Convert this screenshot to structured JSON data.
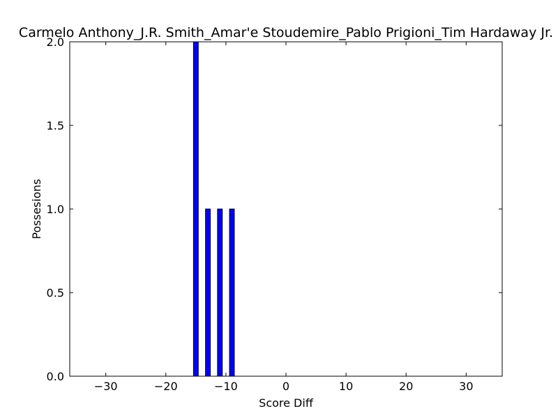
{
  "chart_data": {
    "type": "bar",
    "title": "Carmelo Anthony_J.R. Smith_Amar'e Stoudemire_Pablo Prigioni_Tim Hardaway Jr.",
    "xlabel": "Score Diff",
    "ylabel": "Possesions",
    "xlim": [
      -36,
      36
    ],
    "ylim": [
      0,
      2
    ],
    "xticks": [
      -30,
      -20,
      -10,
      0,
      10,
      20,
      30
    ],
    "xtick_labels": [
      "−30",
      "−20",
      "−10",
      "0",
      "10",
      "20",
      "30"
    ],
    "yticks": [
      0,
      0.5,
      1,
      1.5,
      2
    ],
    "ytick_labels": [
      "0.0",
      "0.5",
      "1.0",
      "1.5",
      "2.0"
    ],
    "grid": false,
    "bar_color": "#0000ff",
    "bars": [
      {
        "x": -15,
        "value": 2
      },
      {
        "x": -13,
        "value": 1
      },
      {
        "x": -11,
        "value": 1
      },
      {
        "x": -9,
        "value": 1
      }
    ]
  }
}
